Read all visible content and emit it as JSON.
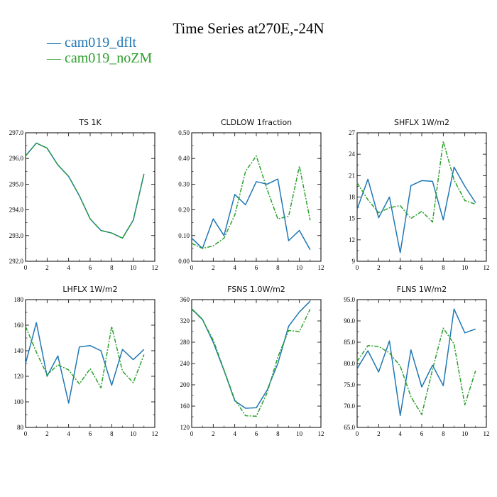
{
  "figure": {
    "title": "Time Series at270E,-24N",
    "colors": {
      "cam019_dflt": "#1f77b4",
      "cam019_noZM": "#2ca02c"
    }
  },
  "legend": [
    {
      "marker": "—",
      "label": "cam019_dflt",
      "color": "#1f77b4"
    },
    {
      "marker": "—",
      "label": "cam019_noZM",
      "color": "#2ca02c"
    }
  ],
  "chart_data": [
    {
      "type": "line",
      "title": "TS   1K",
      "x": [
        0,
        1,
        2,
        3,
        4,
        5,
        6,
        7,
        8,
        9,
        10,
        11
      ],
      "xlim": [
        0,
        12
      ],
      "xticks": [
        0,
        2,
        4,
        6,
        8,
        10,
        12
      ],
      "ylim": [
        292.0,
        297.0
      ],
      "yticks": [
        292.0,
        293.0,
        294.0,
        295.0,
        296.0,
        297.0
      ],
      "ytick_labels": [
        "292.0",
        "293.0",
        "294.0",
        "295.0",
        "296.0",
        "297.0"
      ],
      "series": [
        {
          "name": "cam019_dflt",
          "dashed": false,
          "values": [
            296.1,
            296.6,
            296.4,
            295.75,
            295.3,
            294.55,
            293.65,
            293.2,
            293.1,
            292.9,
            293.6,
            295.4
          ]
        },
        {
          "name": "cam019_noZM",
          "dashed": true,
          "values": [
            296.1,
            296.6,
            296.4,
            295.75,
            295.3,
            294.55,
            293.65,
            293.2,
            293.1,
            292.9,
            293.6,
            295.4
          ]
        }
      ]
    },
    {
      "type": "line",
      "title": "CLDLOW   1fraction",
      "x": [
        0,
        1,
        2,
        3,
        4,
        5,
        6,
        7,
        8,
        9,
        10,
        11
      ],
      "xlim": [
        0,
        12
      ],
      "xticks": [
        0,
        2,
        4,
        6,
        8,
        10,
        12
      ],
      "ylim": [
        0.0,
        0.5
      ],
      "yticks": [
        0.0,
        0.1,
        0.2,
        0.3,
        0.4,
        0.5
      ],
      "ytick_labels": [
        "0.00",
        "0.10",
        "0.20",
        "0.30",
        "0.40",
        "0.50"
      ],
      "series": [
        {
          "name": "cam019_dflt",
          "dashed": false,
          "values": [
            0.09,
            0.05,
            0.165,
            0.1,
            0.26,
            0.22,
            0.31,
            0.3,
            0.32,
            0.08,
            0.12,
            0.045
          ]
        },
        {
          "name": "cam019_noZM",
          "dashed": true,
          "values": [
            0.07,
            0.05,
            0.06,
            0.09,
            0.18,
            0.35,
            0.41,
            0.28,
            0.165,
            0.175,
            0.37,
            0.16
          ]
        }
      ]
    },
    {
      "type": "line",
      "title": "SHFLX   1W/m2",
      "x": [
        0,
        1,
        2,
        3,
        4,
        5,
        6,
        7,
        8,
        9,
        10,
        11
      ],
      "xlim": [
        0,
        12
      ],
      "xticks": [
        0,
        2,
        4,
        6,
        8,
        10,
        12
      ],
      "ylim": [
        9,
        27
      ],
      "yticks": [
        9,
        12,
        15,
        18,
        21,
        24,
        27
      ],
      "ytick_labels": [
        "9",
        "12",
        "15",
        "18",
        "21",
        "24",
        "27"
      ],
      "series": [
        {
          "name": "cam019_dflt",
          "dashed": false,
          "values": [
            16.3,
            20.5,
            15.1,
            18.0,
            10.2,
            19.6,
            20.3,
            20.2,
            14.8,
            22.2,
            19.5,
            17.2
          ]
        },
        {
          "name": "cam019_noZM",
          "dashed": true,
          "values": [
            20.0,
            17.6,
            15.8,
            16.5,
            16.8,
            15.0,
            16.0,
            14.5,
            25.8,
            20.4,
            17.5,
            17.0
          ]
        }
      ]
    },
    {
      "type": "line",
      "title": "LHFLX   1W/m2",
      "x": [
        0,
        1,
        2,
        3,
        4,
        5,
        6,
        7,
        8,
        9,
        10,
        11
      ],
      "xlim": [
        0,
        12
      ],
      "xticks": [
        0,
        2,
        4,
        6,
        8,
        10,
        12
      ],
      "ylim": [
        80,
        180
      ],
      "yticks": [
        80,
        100,
        120,
        140,
        160,
        180
      ],
      "ytick_labels": [
        "80",
        "100",
        "120",
        "140",
        "160",
        "180"
      ],
      "series": [
        {
          "name": "cam019_dflt",
          "dashed": false,
          "values": [
            130,
            162,
            120,
            136,
            99,
            143,
            144,
            140,
            113,
            141,
            133,
            141
          ]
        },
        {
          "name": "cam019_noZM",
          "dashed": true,
          "values": [
            159,
            139,
            121,
            129,
            125,
            114,
            126,
            111,
            159,
            124,
            115,
            137
          ]
        }
      ]
    },
    {
      "type": "line",
      "title": "FSNS   1.0W/m2",
      "x": [
        0,
        1,
        2,
        3,
        4,
        5,
        6,
        7,
        8,
        9,
        10,
        11
      ],
      "xlim": [
        0,
        12
      ],
      "xticks": [
        0,
        2,
        4,
        6,
        8,
        10,
        12
      ],
      "ylim": [
        120,
        360
      ],
      "yticks": [
        120,
        160,
        200,
        240,
        280,
        320,
        360
      ],
      "ytick_labels": [
        "120",
        "160",
        "200",
        "240",
        "280",
        "320",
        "360"
      ],
      "series": [
        {
          "name": "cam019_dflt",
          "dashed": false,
          "values": [
            343,
            323,
            280,
            227,
            170,
            156,
            157,
            190,
            240,
            310,
            337,
            357
          ]
        },
        {
          "name": "cam019_noZM",
          "dashed": true,
          "values": [
            342,
            322,
            284,
            228,
            172,
            142,
            141,
            185,
            252,
            302,
            300,
            342
          ]
        }
      ]
    },
    {
      "type": "line",
      "title": "FLNS   1W/m2",
      "x": [
        0,
        1,
        2,
        3,
        4,
        5,
        6,
        7,
        8,
        9,
        10,
        11
      ],
      "xlim": [
        0,
        12
      ],
      "xticks": [
        0,
        2,
        4,
        6,
        8,
        10,
        12
      ],
      "ylim": [
        65.0,
        95.0
      ],
      "yticks": [
        65,
        70,
        75,
        80,
        85,
        90,
        95
      ],
      "ytick_labels": [
        "65.0",
        "70.0",
        "75.0",
        "80.0",
        "85.0",
        "90.0",
        "95.0"
      ],
      "series": [
        {
          "name": "cam019_dflt",
          "dashed": false,
          "values": [
            78.8,
            83.0,
            78.0,
            85.3,
            67.8,
            83.2,
            74.5,
            79.6,
            74.8,
            92.8,
            87.2,
            88.1
          ]
        },
        {
          "name": "cam019_noZM",
          "dashed": true,
          "values": [
            80.5,
            84.2,
            84.0,
            82.5,
            79.4,
            72.2,
            68.0,
            78.6,
            88.3,
            84.6,
            70.3,
            78.3
          ]
        }
      ]
    }
  ]
}
